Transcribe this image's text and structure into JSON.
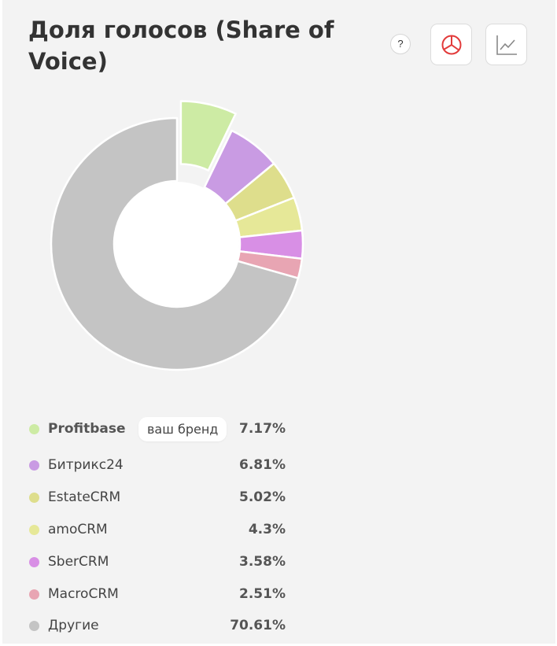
{
  "header": {
    "title": "Доля голосов (Share of Voice)",
    "help_label": "?",
    "pie_button_icon": "pie-chart-icon",
    "line_button_icon": "line-chart-icon"
  },
  "own_brand_badge": "ваш бренд",
  "chart_data": {
    "type": "pie",
    "variant": "donut",
    "categories": [
      "Profitbase",
      "Битрикс24",
      "EstateCRM",
      "amoCRM",
      "SberCRM",
      "MacroCRM",
      "Другие"
    ],
    "values": [
      7.17,
      6.81,
      5.02,
      4.3,
      3.58,
      2.51,
      70.61
    ],
    "labels": [
      "7.17%",
      "6.81%",
      "5.02%",
      "4.3%",
      "3.58%",
      "2.51%",
      "70.61%"
    ],
    "colors": [
      "#cdeba4",
      "#c99be3",
      "#dede8c",
      "#e6e898",
      "#d88fe5",
      "#e8a5b3",
      "#c4c4c4"
    ],
    "highlighted": "Profitbase",
    "legend_position": "bottom"
  }
}
